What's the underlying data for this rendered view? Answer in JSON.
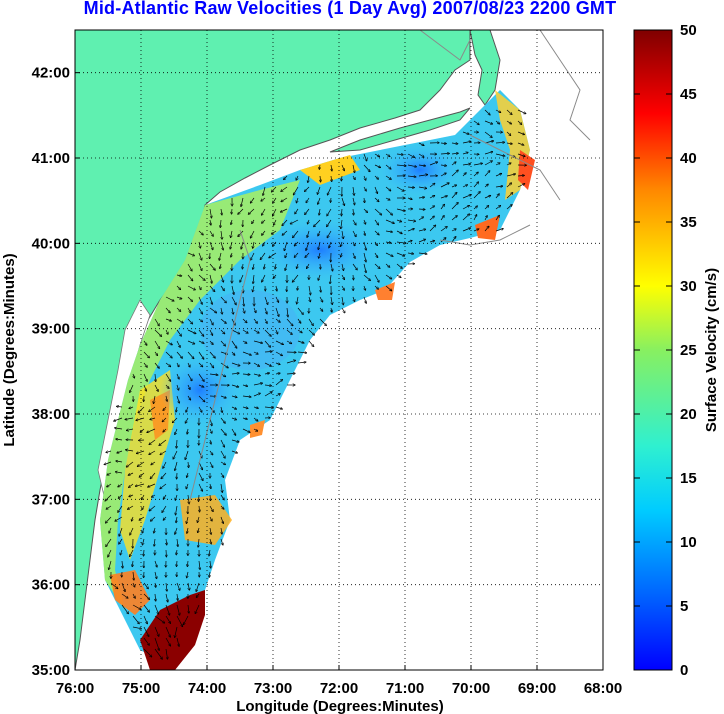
{
  "title": "Mid-Atlantic Raw Velocities (1 Day Avg) 2007/08/23 2200 GMT",
  "map": {
    "xlabel": "Longitude (Degrees:Minutes)",
    "ylabel": "Latitude (Degrees:Minutes)",
    "lon_range": [
      -76,
      -68
    ],
    "lat_range": [
      35,
      42.5
    ],
    "lon_ticks": [
      "76:00",
      "75:00",
      "74:00",
      "73:00",
      "72:00",
      "71:00",
      "70:00",
      "69:00",
      "68:00"
    ],
    "lat_ticks": [
      "35:00",
      "36:00",
      "37:00",
      "38:00",
      "39:00",
      "40:00",
      "41:00",
      "42:00"
    ],
    "grid": "dotted",
    "land_color": "#5ff0b0",
    "coastline_color": "#808080"
  },
  "colorbar": {
    "label": "Surface Velocity (cm/s)",
    "ticks": [
      "0",
      "5",
      "10",
      "15",
      "20",
      "25",
      "30",
      "35",
      "40",
      "45",
      "50"
    ],
    "range": [
      0,
      50
    ],
    "colormap": "jet"
  }
}
